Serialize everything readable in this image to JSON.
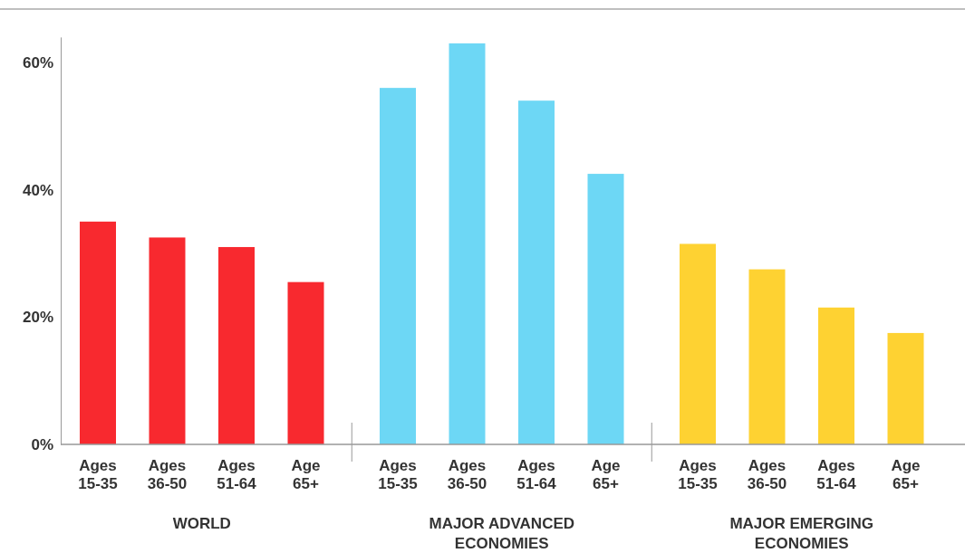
{
  "chart_data": {
    "type": "bar",
    "categories": [
      "Ages 15-35",
      "Ages 36-50",
      "Ages 51-64",
      "Age 65+",
      "Ages 15-35",
      "Ages 36-50",
      "Ages 51-64",
      "Age 65+",
      "Ages 15-35",
      "Ages 36-50",
      "Ages 51-64",
      "Age 65+"
    ],
    "series": [
      {
        "color": "#f8292f",
        "values": [
          35,
          32.5,
          31,
          25.5,
          null,
          null,
          null,
          null,
          null,
          null,
          null,
          null
        ]
      },
      {
        "color": "#6dd7f5",
        "values": [
          null,
          null,
          null,
          null,
          56,
          63,
          54,
          42.5,
          null,
          null,
          null,
          null
        ]
      },
      {
        "color": "#fed232",
        "values": [
          null,
          null,
          null,
          null,
          null,
          null,
          null,
          null,
          31.5,
          27.5,
          21.5,
          17.5
        ]
      }
    ],
    "annotations": [
      "WORLD",
      "MAJOR ADVANCED ECONOMIES",
      "MAJOR EMERGING ECONOMIES"
    ],
    "ylim": [
      0,
      64
    ],
    "yticks": [
      {
        "value": 0,
        "label": "0%"
      },
      {
        "value": 20,
        "label": "20%"
      },
      {
        "value": 40,
        "label": "40%"
      },
      {
        "value": 60,
        "label": "60%"
      }
    ],
    "grid": false
  }
}
